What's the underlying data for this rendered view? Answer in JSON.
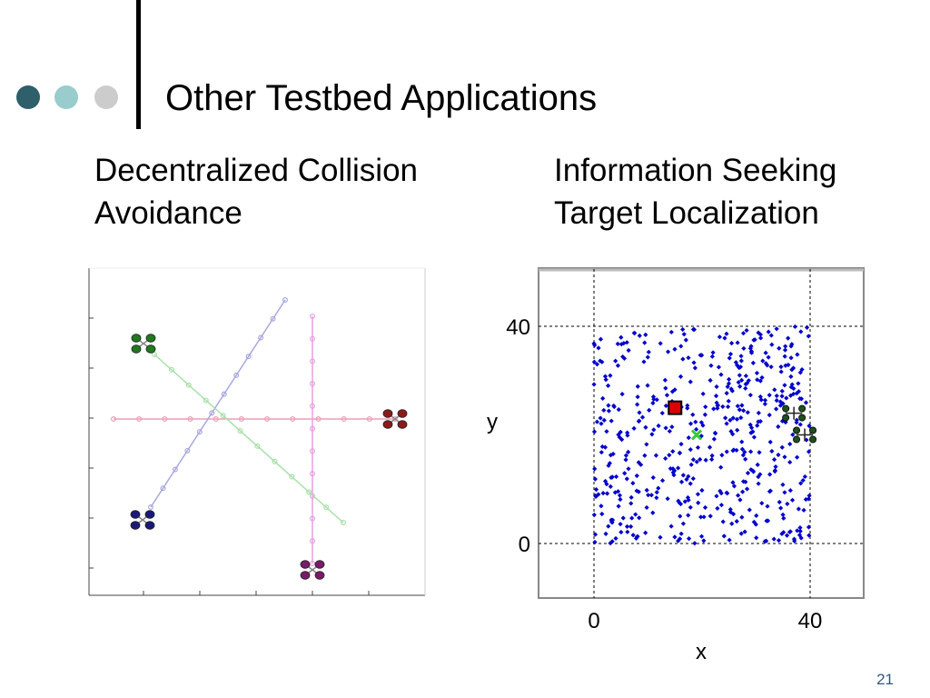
{
  "slide": {
    "title": "Other Testbed Applications",
    "page_number": "21",
    "bullet_dot_colors": [
      "#2e5f6a",
      "#99cccc",
      "#cccccc"
    ]
  },
  "left_panel": {
    "heading_lines": [
      "Decentralized Collision",
      "Avoidance"
    ],
    "vehicles": [
      {
        "color": "#1f7a1f",
        "start": "upper-left",
        "end": "lower-right"
      },
      {
        "color": "#8b1a1a",
        "start": "right",
        "end": "left"
      },
      {
        "color": "#1a1a7a",
        "start": "lower-left",
        "end": "upper-right"
      },
      {
        "color": "#7a1a6a",
        "start": "bottom",
        "end": "top"
      }
    ]
  },
  "right_panel": {
    "heading_lines": [
      "Information Seeking",
      "Target Localization"
    ],
    "chart_data": {
      "type": "scatter",
      "xlabel": "x",
      "ylabel": "y",
      "x_ticks": [
        "0",
        "40"
      ],
      "y_ticks": [
        "0",
        "40"
      ],
      "xlim": [
        -10,
        50
      ],
      "ylim": [
        -10,
        50
      ],
      "grid": "dashed lines at 0 and 40",
      "field_extent": {
        "x": [
          0,
          40
        ],
        "y": [
          0,
          40
        ]
      },
      "sensor_color": "#0000cc",
      "target": {
        "x": 15,
        "y": 25,
        "color": "#dd0000",
        "marker": "square"
      },
      "estimate": {
        "x": 19,
        "y": 20,
        "color": "#33cc33",
        "marker": "x"
      },
      "vehicles": [
        {
          "x": 37,
          "y": 24,
          "color": "#1f4f1f"
        },
        {
          "x": 39,
          "y": 20,
          "color": "#1f4f1f"
        }
      ]
    }
  }
}
